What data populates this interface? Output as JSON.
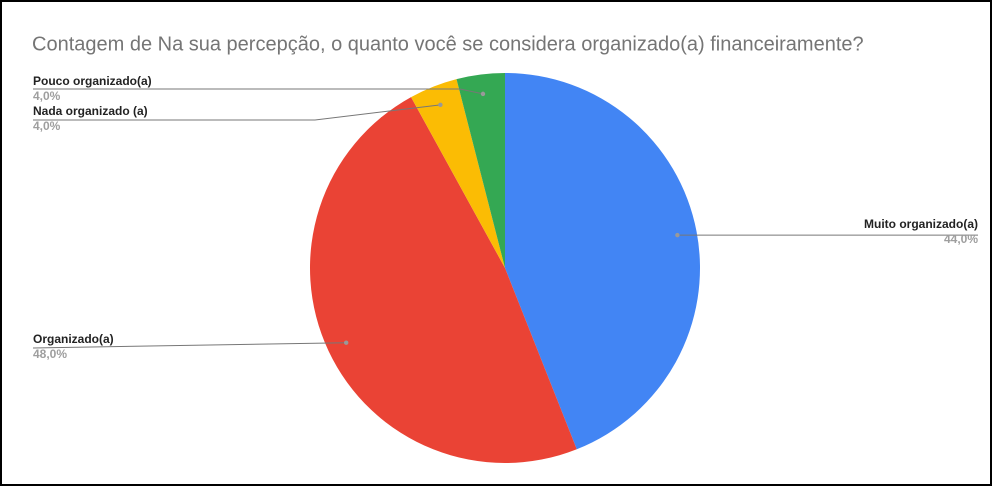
{
  "chart_data": {
    "type": "pie",
    "title": "Contagem de Na sua percepção, o quanto você se considera organizado(a) financeiramente?",
    "categories": [
      "Muito organizado(a)",
      "Organizado(a)",
      "Nada organizado (a)",
      "Pouco organizado(a)"
    ],
    "values": [
      44,
      48,
      4,
      4
    ],
    "value_labels": [
      "44,0%",
      "48,0%",
      "4,0%",
      "4,0%"
    ],
    "colors": [
      "#4285f4",
      "#ea4335",
      "#fbbc04",
      "#34a853"
    ]
  }
}
